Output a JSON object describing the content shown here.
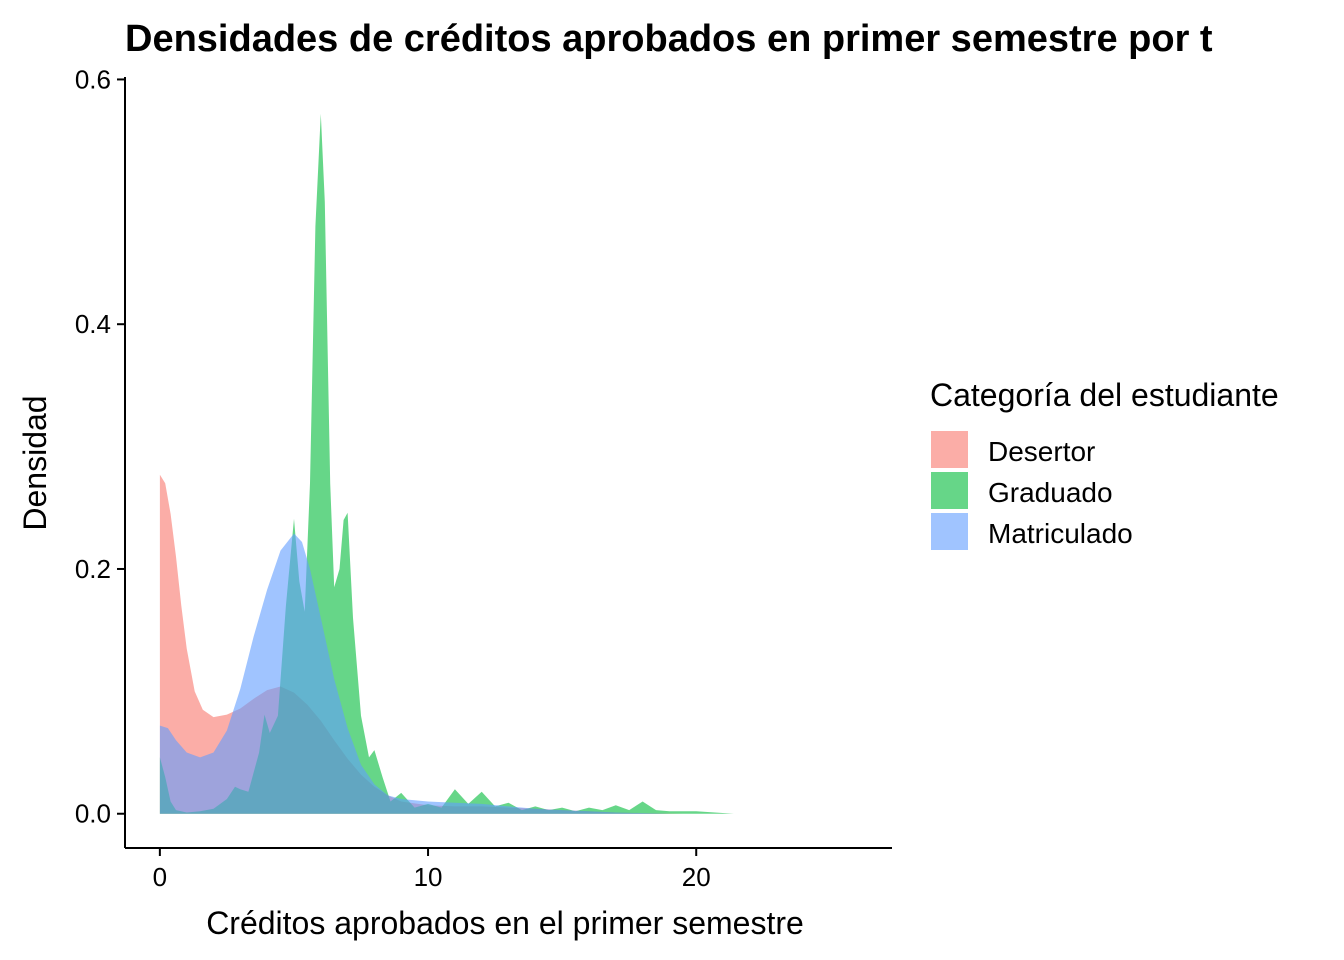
{
  "chart_data": {
    "type": "area",
    "title": "Densidades de créditos aprobados en primer semestre por t",
    "xlabel": "Créditos aprobados en el primer semestre",
    "ylabel": "Densidad",
    "xlim": [
      -1.3,
      27.3
    ],
    "ylim": [
      -0.028,
      0.602
    ],
    "x_ticks": [
      0,
      10,
      20
    ],
    "x_tick_labels": [
      "0",
      "10",
      "20"
    ],
    "y_ticks": [
      0.0,
      0.2,
      0.4,
      0.6
    ],
    "y_tick_labels": [
      "0.0",
      "0.2",
      "0.4",
      "0.6"
    ],
    "grid": false,
    "legend": {
      "title": "Categoría del estudiante",
      "placement": "right"
    },
    "series": [
      {
        "name": "Desertor",
        "color": "#F8766D",
        "opacity": 0.6,
        "points": [
          [
            0,
            0.277
          ],
          [
            0.2,
            0.27
          ],
          [
            0.4,
            0.245
          ],
          [
            0.6,
            0.21
          ],
          [
            0.8,
            0.17
          ],
          [
            1.0,
            0.135
          ],
          [
            1.3,
            0.1
          ],
          [
            1.6,
            0.085
          ],
          [
            2.0,
            0.079
          ],
          [
            2.5,
            0.081
          ],
          [
            3.0,
            0.086
          ],
          [
            3.5,
            0.094
          ],
          [
            4.0,
            0.101
          ],
          [
            4.5,
            0.104
          ],
          [
            5.0,
            0.099
          ],
          [
            5.5,
            0.089
          ],
          [
            6.0,
            0.076
          ],
          [
            6.5,
            0.06
          ],
          [
            7.0,
            0.045
          ],
          [
            7.5,
            0.032
          ],
          [
            8.0,
            0.022
          ],
          [
            8.5,
            0.015
          ],
          [
            9.0,
            0.01
          ],
          [
            10,
            0.007
          ],
          [
            11,
            0.006
          ],
          [
            12,
            0.006
          ],
          [
            13,
            0.005
          ],
          [
            14,
            0.004
          ],
          [
            15,
            0.003
          ],
          [
            16,
            0.002
          ],
          [
            17,
            0.001
          ],
          [
            18,
            0.0005
          ],
          [
            19.5,
            0
          ]
        ]
      },
      {
        "name": "Graduado",
        "color": "#00BA38",
        "opacity": 0.6,
        "points": [
          [
            0,
            0.046
          ],
          [
            0.2,
            0.03
          ],
          [
            0.4,
            0.01
          ],
          [
            0.6,
            0.003
          ],
          [
            1.0,
            0.001
          ],
          [
            1.5,
            0.002
          ],
          [
            2.0,
            0.004
          ],
          [
            2.5,
            0.012
          ],
          [
            2.8,
            0.022
          ],
          [
            3.0,
            0.02
          ],
          [
            3.3,
            0.018
          ],
          [
            3.7,
            0.05
          ],
          [
            3.9,
            0.081
          ],
          [
            4.1,
            0.066
          ],
          [
            4.4,
            0.08
          ],
          [
            4.7,
            0.17
          ],
          [
            5.0,
            0.241
          ],
          [
            5.2,
            0.19
          ],
          [
            5.4,
            0.165
          ],
          [
            5.6,
            0.27
          ],
          [
            5.8,
            0.48
          ],
          [
            6.0,
            0.572
          ],
          [
            6.15,
            0.5
          ],
          [
            6.35,
            0.27
          ],
          [
            6.5,
            0.185
          ],
          [
            6.7,
            0.2
          ],
          [
            6.85,
            0.24
          ],
          [
            7.0,
            0.246
          ],
          [
            7.2,
            0.16
          ],
          [
            7.5,
            0.08
          ],
          [
            7.8,
            0.046
          ],
          [
            8.0,
            0.052
          ],
          [
            8.3,
            0.03
          ],
          [
            8.6,
            0.01
          ],
          [
            9.0,
            0.017
          ],
          [
            9.5,
            0.005
          ],
          [
            10,
            0.008
          ],
          [
            10.5,
            0.005
          ],
          [
            11,
            0.02
          ],
          [
            11.5,
            0.008
          ],
          [
            12,
            0.018
          ],
          [
            12.5,
            0.006
          ],
          [
            13,
            0.009
          ],
          [
            13.5,
            0.003
          ],
          [
            14,
            0.006
          ],
          [
            14.5,
            0.003
          ],
          [
            15,
            0.005
          ],
          [
            15.5,
            0.002
          ],
          [
            16,
            0.005
          ],
          [
            16.5,
            0.003
          ],
          [
            17,
            0.007
          ],
          [
            17.5,
            0.003
          ],
          [
            18,
            0.01
          ],
          [
            18.5,
            0.003
          ],
          [
            19,
            0.002
          ],
          [
            20,
            0.002
          ],
          [
            21.4,
            0
          ]
        ]
      },
      {
        "name": "Matriculado",
        "color": "#619CFF",
        "opacity": 0.6,
        "points": [
          [
            0,
            0.072
          ],
          [
            0.3,
            0.07
          ],
          [
            0.6,
            0.06
          ],
          [
            1.0,
            0.05
          ],
          [
            1.5,
            0.046
          ],
          [
            2.0,
            0.05
          ],
          [
            2.5,
            0.068
          ],
          [
            3.0,
            0.102
          ],
          [
            3.5,
            0.145
          ],
          [
            4.0,
            0.183
          ],
          [
            4.5,
            0.215
          ],
          [
            5.0,
            0.229
          ],
          [
            5.3,
            0.222
          ],
          [
            5.6,
            0.2
          ],
          [
            6.0,
            0.16
          ],
          [
            6.5,
            0.11
          ],
          [
            7.0,
            0.07
          ],
          [
            7.5,
            0.04
          ],
          [
            8.0,
            0.024
          ],
          [
            8.5,
            0.015
          ],
          [
            9.0,
            0.012
          ],
          [
            10,
            0.01
          ],
          [
            11,
            0.009
          ],
          [
            12,
            0.008
          ],
          [
            13,
            0.006
          ],
          [
            14,
            0.004
          ],
          [
            15,
            0.003
          ],
          [
            16,
            0.002
          ],
          [
            17,
            0.001
          ],
          [
            19,
            0
          ]
        ]
      }
    ]
  }
}
